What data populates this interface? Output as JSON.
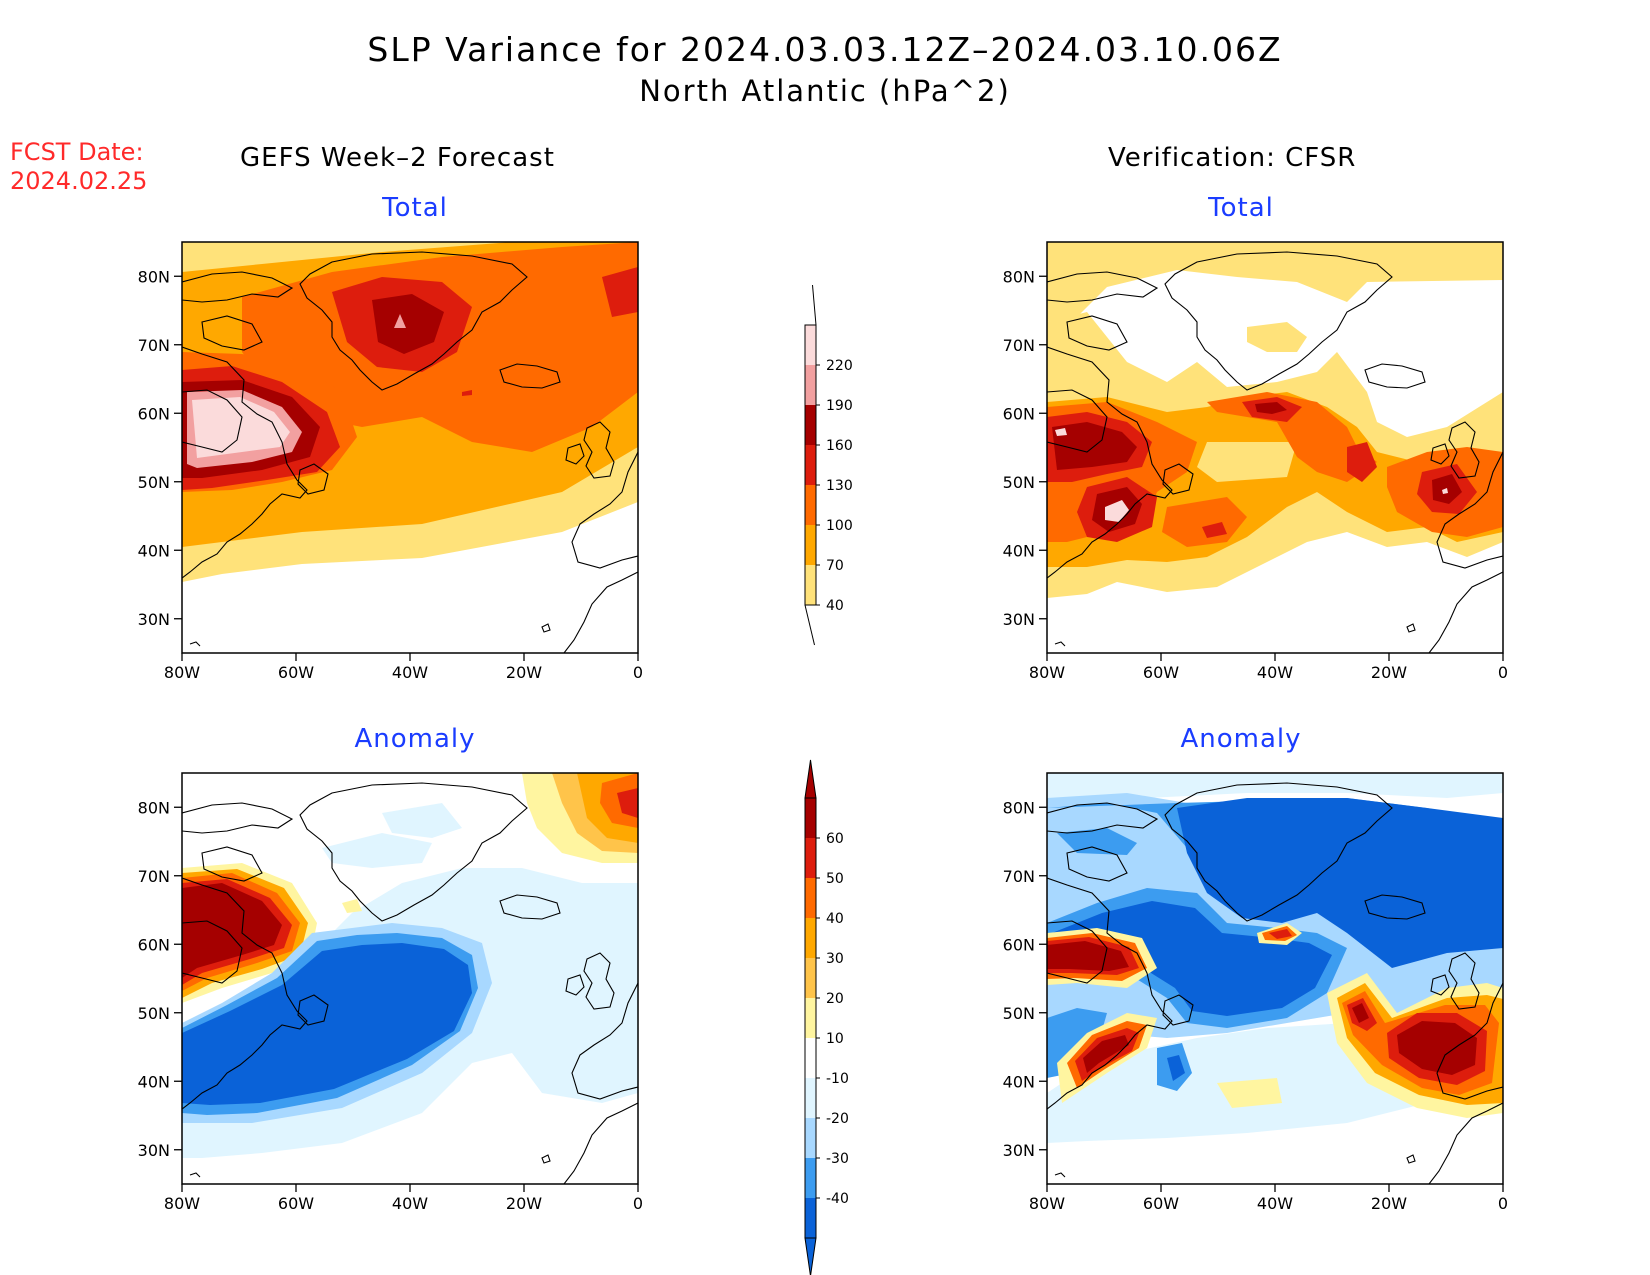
{
  "title": "SLP Variance for 2024.03.03.12Z–2024.03.10.06Z",
  "subtitle": "North Atlantic (hPa^2)",
  "fcst_label": "FCST Date:",
  "fcst_date": "2024.02.25",
  "columns": {
    "left": "GEFS Week–2 Forecast",
    "right": "Verification: CFSR"
  },
  "panels": {
    "tl": "Total",
    "tr": "Total",
    "bl": "Anomaly",
    "br": "Anomaly"
  },
  "axes": {
    "lat_labels": [
      "80N",
      "70N",
      "60N",
      "50N",
      "40N",
      "30N"
    ],
    "lon_labels": [
      "80W",
      "60W",
      "40W",
      "20W",
      "0"
    ],
    "lat_range": [
      25,
      85
    ],
    "lon_range": [
      -80,
      0
    ]
  },
  "colorbars": {
    "total": {
      "labels": [
        "220",
        "190",
        "160",
        "130",
        "100",
        "70",
        "40"
      ],
      "colors": [
        "#fbdbdb",
        "#f2a0a0",
        "#a50000",
        "#dd1d0d",
        "#ff6a00",
        "#ffa800",
        "#ffe27a"
      ]
    },
    "anomaly": {
      "labels": [
        "60",
        "50",
        "40",
        "30",
        "20",
        "10",
        "-10",
        "-20",
        "-30",
        "-40"
      ],
      "colors": [
        "#a50000",
        "#dd1d0d",
        "#ff6a00",
        "#ffa800",
        "#ffc44a",
        "#fff5a0",
        "#ffffff",
        "#e0f5ff",
        "#a8d8ff",
        "#3c9cf0",
        "#0a62d8"
      ]
    }
  }
}
